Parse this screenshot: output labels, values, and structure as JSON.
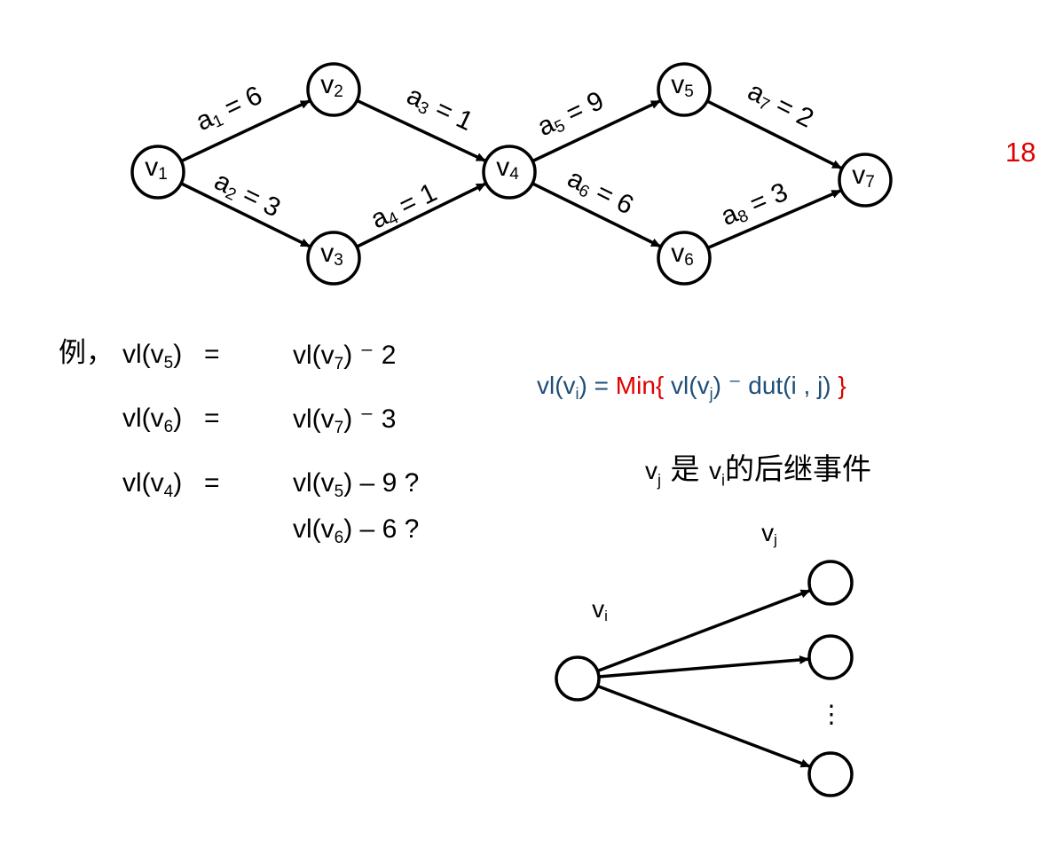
{
  "page_number": "18",
  "colors": {
    "accent_red": "#e00000",
    "formula_blue": "#1f4e79",
    "ink": "#000000"
  },
  "graph": {
    "nodes": [
      {
        "id": "v1",
        "base": "v",
        "sub": "1"
      },
      {
        "id": "v2",
        "base": "v",
        "sub": "2"
      },
      {
        "id": "v3",
        "base": "v",
        "sub": "3"
      },
      {
        "id": "v4",
        "base": "v",
        "sub": "4"
      },
      {
        "id": "v5",
        "base": "v",
        "sub": "5"
      },
      {
        "id": "v6",
        "base": "v",
        "sub": "6"
      },
      {
        "id": "v7",
        "base": "v",
        "sub": "7"
      }
    ],
    "edges": [
      {
        "id": "a1",
        "from": "v1",
        "to": "v2",
        "label_base": "a",
        "label_sub": "1",
        "weight": "6"
      },
      {
        "id": "a2",
        "from": "v1",
        "to": "v3",
        "label_base": "a",
        "label_sub": "2",
        "weight": "3"
      },
      {
        "id": "a3",
        "from": "v2",
        "to": "v4",
        "label_base": "a",
        "label_sub": "3",
        "weight": "1"
      },
      {
        "id": "a4",
        "from": "v3",
        "to": "v4",
        "label_base": "a",
        "label_sub": "4",
        "weight": "1"
      },
      {
        "id": "a5",
        "from": "v4",
        "to": "v5",
        "label_base": "a",
        "label_sub": "5",
        "weight": "9"
      },
      {
        "id": "a6",
        "from": "v4",
        "to": "v6",
        "label_base": "a",
        "label_sub": "6",
        "weight": "6"
      },
      {
        "id": "a7",
        "from": "v5",
        "to": "v7",
        "label_base": "a",
        "label_sub": "7",
        "weight": "2"
      },
      {
        "id": "a8",
        "from": "v6",
        "to": "v7",
        "label_base": "a",
        "label_sub": "8",
        "weight": "3"
      }
    ]
  },
  "example": {
    "prefix": "例，",
    "rows": [
      {
        "lhs_base": "vl(v",
        "lhs_sub": "5",
        "lhs_tail": ")",
        "op": "=",
        "rhs_base": "vl(v",
        "rhs_sub": "7",
        "rhs_tail": ") ⁻ 2"
      },
      {
        "lhs_base": "vl(v",
        "lhs_sub": "6",
        "lhs_tail": ")",
        "op": "=",
        "rhs_base": "vl(v",
        "rhs_sub": "7",
        "rhs_tail": ") ⁻ 3"
      },
      {
        "lhs_base": "vl(v",
        "lhs_sub": "4",
        "lhs_tail": ")",
        "op": "=",
        "rhs_base": "vl(v",
        "rhs_sub": "5",
        "rhs_tail": ") – 9 ?"
      },
      {
        "rhs_base": "vl(v",
        "rhs_sub": "6",
        "rhs_tail": ") – 6 ?"
      }
    ]
  },
  "formula": {
    "lhs_base": "vl(v",
    "lhs_sub": "i",
    "lhs_tail": ")  =",
    "min_open": "Min{",
    "inner_base": " vl(v",
    "inner_sub": "j",
    "inner_tail": ") ⁻ dut(i , j)",
    "close": " }"
  },
  "successor_note": {
    "vj_base": "v",
    "vj_sub": "j",
    "mid": " 是 ",
    "vi_base": "v",
    "vi_sub": "i",
    "tail": "的后继事件"
  },
  "fan_diagram": {
    "source_label_base": "v",
    "source_label_sub": "i",
    "target_label_base": "v",
    "target_label_sub": "j",
    "ellipsis": "⋮"
  }
}
